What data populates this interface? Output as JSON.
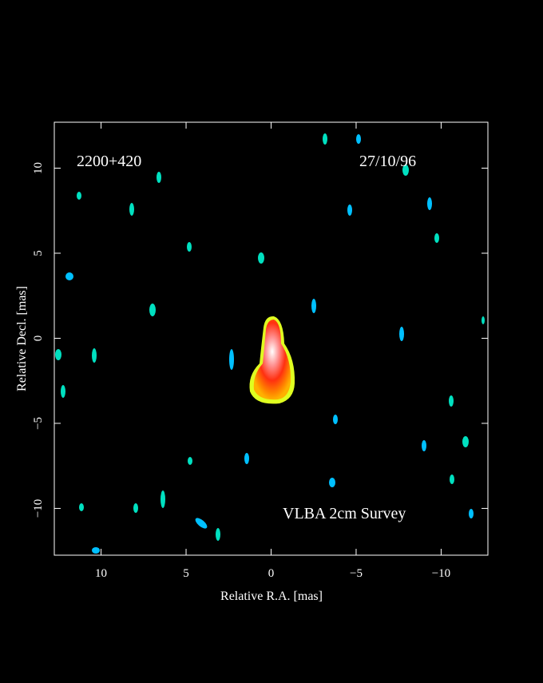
{
  "chart_data": {
    "type": "image",
    "labels": [
      "2200+420",
      "27/10/96",
      "VLBA 2cm Survey"
    ],
    "xlabel": "Relative R.A. [mas]",
    "ylabel": "Relative Decl. [mas]",
    "xlim": [
      12.75,
      -12.75
    ],
    "ylim": [
      -12.75,
      12.7
    ],
    "xticks": [
      {
        "value": 10,
        "label": "10"
      },
      5,
      0,
      {
        "value": -5,
        "label": "−5"
      },
      {
        "value": -10,
        "label": "−10"
      }
    ],
    "yticks": [
      {
        "value": -10,
        "label": "−10"
      },
      {
        "value": -5,
        "label": "−5"
      },
      0,
      5,
      10
    ]
  }
}
